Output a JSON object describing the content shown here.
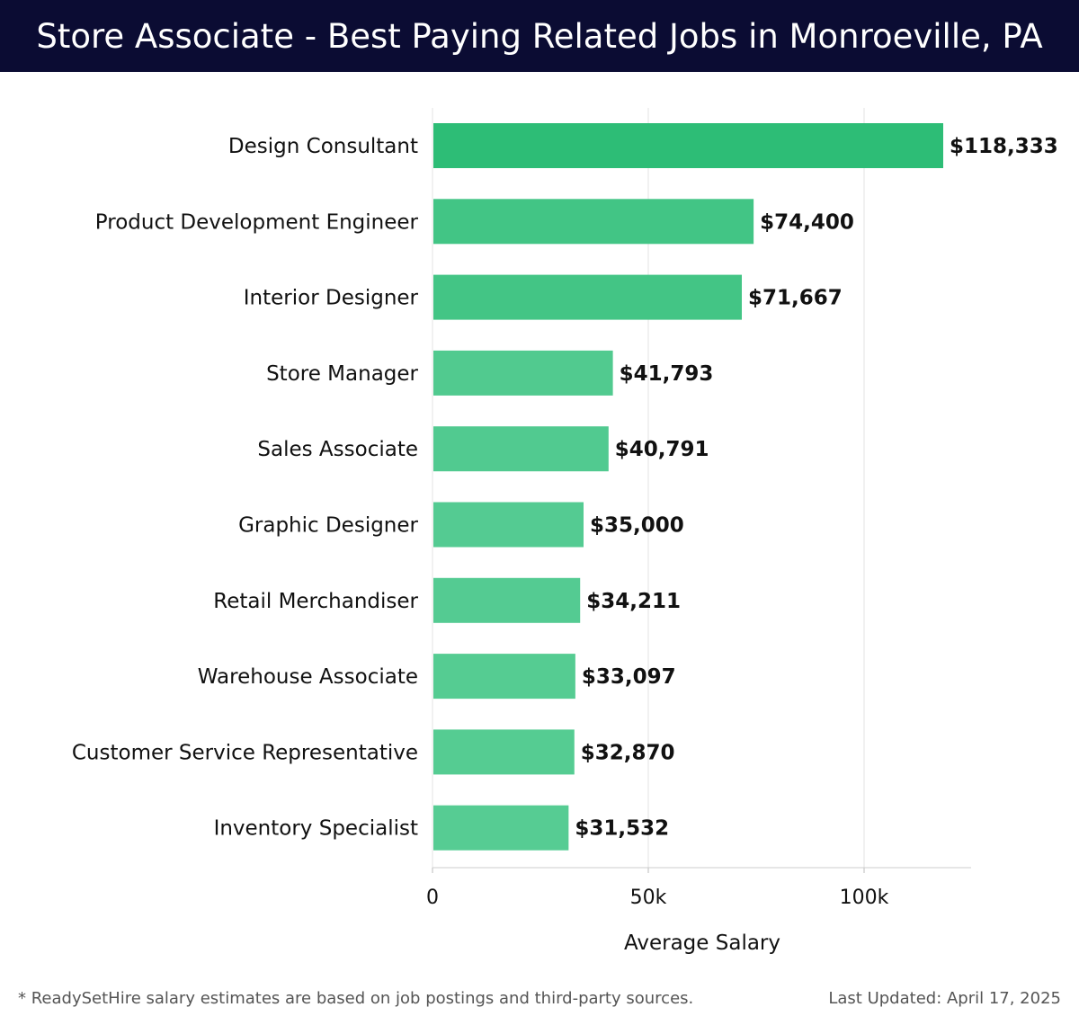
{
  "title": "Store Associate - Best Paying Related Jobs in Monroeville, PA",
  "footer": {
    "note": "* ReadySetHire salary estimates are based on job postings and third-party sources.",
    "updated": "Last Updated: April 17, 2025"
  },
  "colors": {
    "header_bg": "#0b0c33",
    "bar_top": "#2dbd76",
    "bar_light": "#56cc93"
  },
  "chart_data": {
    "type": "bar",
    "orientation": "horizontal",
    "categories": [
      "Design Consultant",
      "Product Development Engineer",
      "Interior Designer",
      "Store Manager",
      "Sales Associate",
      "Graphic Designer",
      "Retail Merchandiser",
      "Warehouse Associate",
      "Customer Service Representative",
      "Inventory Specialist"
    ],
    "values": [
      118333,
      74400,
      71667,
      41793,
      40791,
      35000,
      34211,
      33097,
      32870,
      31532
    ],
    "value_labels": [
      "$118,333",
      "$74,400",
      "$71,667",
      "$41,793",
      "$40,791",
      "$35,000",
      "$34,211",
      "$33,097",
      "$32,870",
      "$31,532"
    ],
    "xlabel": "Average Salary",
    "xticks": [
      {
        "value": 0,
        "label": "0"
      },
      {
        "value": 50000,
        "label": "50k"
      },
      {
        "value": 100000,
        "label": "100k"
      }
    ],
    "xlim": [
      0,
      125000
    ],
    "grid": true
  }
}
